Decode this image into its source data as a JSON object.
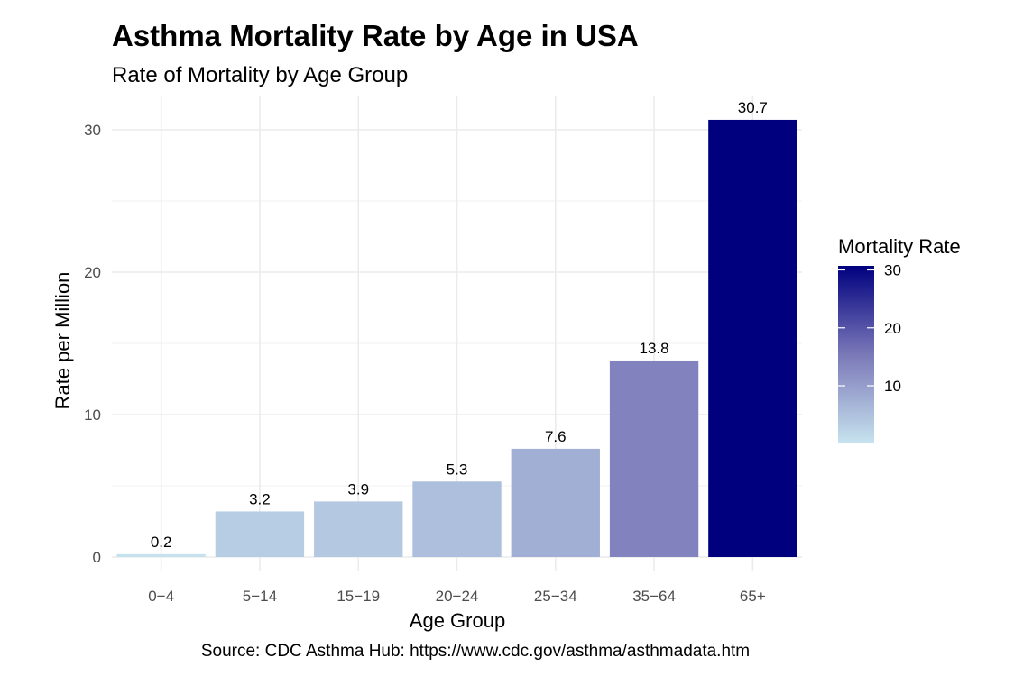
{
  "chart_data": {
    "type": "bar",
    "title": "Asthma Mortality Rate by Age in USA",
    "subtitle": "Rate of Mortality by Age Group",
    "xlabel": "Age Group",
    "ylabel": "Rate per Million",
    "caption": "Source: CDC Asthma Hub: https://www.cdc.gov/asthma/asthmadata.htm",
    "categories": [
      "0−4",
      "5−14",
      "15−19",
      "20−24",
      "25−34",
      "35−64",
      "65+"
    ],
    "values": [
      0.2,
      3.2,
      3.9,
      5.3,
      7.6,
      13.8,
      30.7
    ],
    "value_labels": [
      "0.2",
      "3.2",
      "3.9",
      "5.3",
      "7.6",
      "13.8",
      "30.7"
    ],
    "ylim": [
      0,
      31
    ],
    "y_ticks": [
      0,
      10,
      20,
      30
    ],
    "y_tick_labels": [
      "0",
      "10",
      "20",
      "30"
    ],
    "grid": true,
    "color_scale": {
      "low": "#c6e2ee",
      "mid": "#7a78b8",
      "high": "#00007f"
    },
    "legend": {
      "title": "Mortality Rate",
      "placement": "right",
      "ticks": [
        10,
        20,
        30
      ],
      "tick_labels": [
        "10",
        "20",
        "30"
      ]
    }
  }
}
